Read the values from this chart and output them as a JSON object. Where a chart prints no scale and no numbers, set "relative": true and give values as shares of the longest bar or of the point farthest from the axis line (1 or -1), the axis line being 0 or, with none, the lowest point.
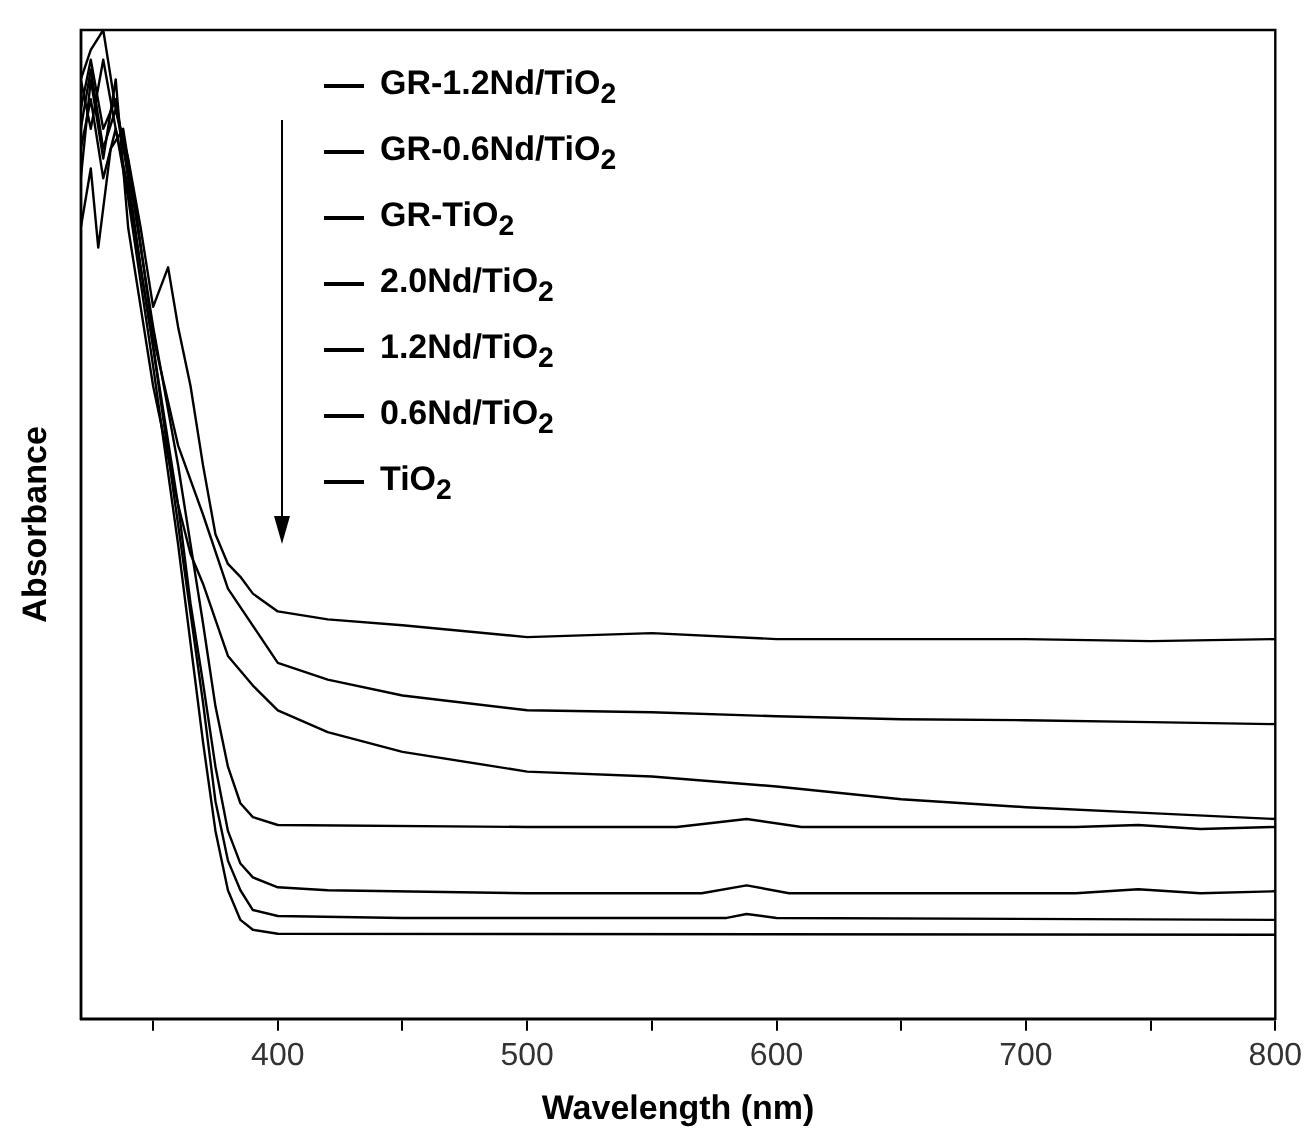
{
  "chart_data": {
    "type": "line",
    "xlabel": "Wavelength (nm)",
    "ylabel": "Absorbance",
    "relative": true,
    "legend": "top",
    "marker": "none",
    "line_style": "solid",
    "grid": false,
    "xlim": [
      321,
      800
    ],
    "xticks": [
      {
        "value": 350,
        "label": null
      },
      400,
      {
        "value": 450,
        "label": null
      },
      500,
      {
        "value": 550,
        "label": null
      },
      600,
      {
        "value": 650,
        "label": null
      },
      700,
      {
        "value": 750,
        "label": null
      },
      800
    ],
    "series": [
      {
        "name": "GR-1.2Nd/TiO$_{2}$",
        "color": "#000000",
        "x": [
          321,
          325,
          330,
          335,
          340,
          345,
          350,
          356,
          360,
          365,
          370,
          375,
          380,
          385,
          390,
          400,
          420,
          450,
          500,
          550,
          600,
          650,
          700,
          750,
          800
        ],
        "values": [
          0.95,
          0.98,
          1.0,
          0.92,
          0.87,
          0.8,
          0.72,
          0.76,
          0.7,
          0.64,
          0.56,
          0.49,
          0.46,
          0.447,
          0.43,
          0.412,
          0.404,
          0.398,
          0.386,
          0.39,
          0.384,
          0.384,
          0.384,
          0.382,
          0.384
        ]
      },
      {
        "name": "GR-0.6Nd/TiO$_{2}$",
        "color": "#000000",
        "x": [
          321,
          325,
          328,
          333,
          338,
          343,
          350,
          360,
          370,
          380,
          400,
          420,
          450,
          500,
          550,
          600,
          650,
          700,
          750,
          800
        ],
        "values": [
          0.8,
          0.86,
          0.78,
          0.88,
          0.9,
          0.82,
          0.69,
          0.58,
          0.51,
          0.435,
          0.36,
          0.343,
          0.327,
          0.312,
          0.31,
          0.306,
          0.303,
          0.302,
          0.3,
          0.298
        ]
      },
      {
        "name": "GR-TiO$_{2}$",
        "color": "#000000",
        "x": [
          321,
          325,
          330,
          335,
          340,
          345,
          350,
          360,
          365,
          370,
          380,
          390,
          400,
          420,
          450,
          500,
          550,
          600,
          650,
          700,
          750,
          800
        ],
        "values": [
          0.85,
          0.95,
          0.87,
          0.95,
          0.8,
          0.72,
          0.64,
          0.52,
          0.47,
          0.44,
          0.367,
          0.337,
          0.312,
          0.29,
          0.27,
          0.25,
          0.245,
          0.235,
          0.222,
          0.214,
          0.208,
          0.202
        ]
      },
      {
        "name": "2.0Nd/TiO$_{2}$",
        "color": "#000000",
        "x": [
          321,
          325,
          330,
          335,
          340,
          345,
          350,
          355,
          360,
          365,
          370,
          375,
          380,
          385,
          390,
          400,
          500,
          560,
          588,
          610,
          720,
          745,
          770,
          800
        ],
        "values": [
          0.9,
          0.96,
          0.88,
          0.92,
          0.86,
          0.78,
          0.7,
          0.63,
          0.56,
          0.48,
          0.4,
          0.316,
          0.255,
          0.218,
          0.204,
          0.196,
          0.194,
          0.194,
          0.202,
          0.194,
          0.194,
          0.196,
          0.192,
          0.194
        ]
      },
      {
        "name": "1.2Nd/TiO$_{2}$",
        "color": "#000000",
        "x": [
          321,
          325,
          330,
          335,
          340,
          345,
          350,
          355,
          360,
          365,
          370,
          375,
          380,
          385,
          390,
          400,
          420,
          500,
          570,
          588,
          605,
          720,
          745,
          770,
          800
        ],
        "values": [
          0.88,
          0.93,
          0.85,
          0.9,
          0.84,
          0.76,
          0.68,
          0.6,
          0.52,
          0.42,
          0.34,
          0.255,
          0.19,
          0.157,
          0.143,
          0.133,
          0.13,
          0.127,
          0.127,
          0.135,
          0.127,
          0.127,
          0.131,
          0.127,
          0.129
        ]
      },
      {
        "name": "0.6Nd/TiO$_{2}$",
        "color": "#000000",
        "x": [
          321,
          325,
          330,
          335,
          340,
          345,
          350,
          355,
          360,
          365,
          370,
          375,
          380,
          385,
          390,
          400,
          450,
          580,
          588,
          600,
          800
        ],
        "values": [
          0.92,
          0.97,
          0.9,
          0.93,
          0.85,
          0.76,
          0.68,
          0.59,
          0.5,
          0.41,
          0.32,
          0.22,
          0.16,
          0.13,
          0.11,
          0.104,
          0.102,
          0.102,
          0.106,
          0.102,
          0.1
        ]
      },
      {
        "name": "TiO$_{2}$",
        "color": "#000000",
        "x": [
          321,
          325,
          330,
          335,
          340,
          345,
          350,
          355,
          360,
          365,
          370,
          375,
          380,
          385,
          390,
          400,
          800
        ],
        "values": [
          0.95,
          0.9,
          0.97,
          0.9,
          0.83,
          0.745,
          0.66,
          0.57,
          0.48,
          0.38,
          0.28,
          0.19,
          0.13,
          0.1,
          0.09,
          0.086,
          0.085
        ]
      }
    ]
  }
}
